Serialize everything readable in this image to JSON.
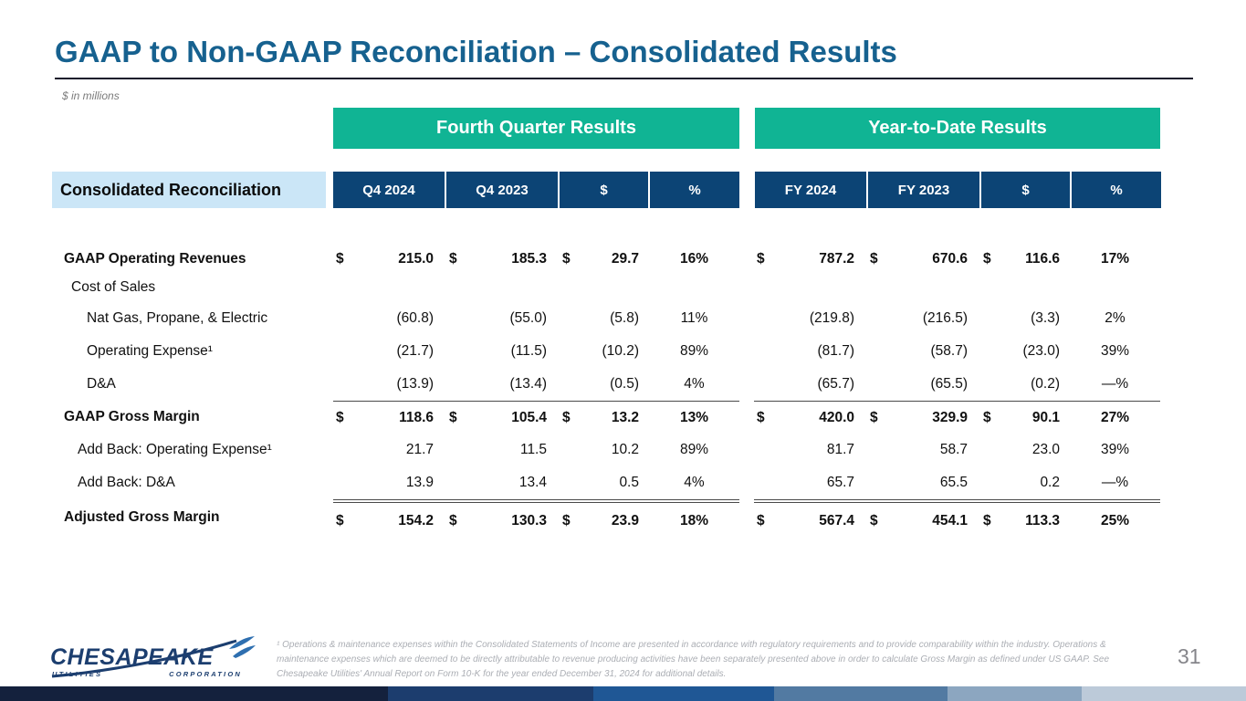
{
  "slide": {
    "title": "GAAP to Non-GAAP Reconciliation – Consolidated Results",
    "units_note": "$ in millions",
    "page_number": "31"
  },
  "table": {
    "group_headers": [
      "Fourth Quarter Results",
      "Year-to-Date Results"
    ],
    "row_header_label": "Consolidated Reconciliation",
    "columns_q": [
      "Q4 2024",
      "Q4 2023",
      "$",
      "%"
    ],
    "columns_y": [
      "FY 2024",
      "FY 2023",
      "$",
      "%"
    ],
    "rows": [
      {
        "label": "GAAP Operating Revenues",
        "indent": 13,
        "bold": true,
        "rule": "none",
        "q": [
          "$",
          "215.0",
          "$",
          "185.3",
          "$",
          "29.7",
          "16%"
        ],
        "y": [
          "$",
          "787.2",
          "$",
          "670.6",
          "$",
          "116.6",
          "17%"
        ]
      },
      {
        "label": "Cost of Sales",
        "indent": 21,
        "bold": false,
        "rule": "none",
        "q": [
          "",
          "",
          "",
          "",
          "",
          "",
          ""
        ],
        "y": [
          "",
          "",
          "",
          "",
          "",
          "",
          ""
        ]
      },
      {
        "label": "Nat Gas, Propane, & Electric",
        "indent": 38,
        "bold": false,
        "rule": "none",
        "q": [
          "",
          "(60.8)",
          "",
          "(55.0)",
          "",
          "(5.8)",
          "11%"
        ],
        "y": [
          "",
          "(219.8)",
          "",
          "(216.5)",
          "",
          "(3.3)",
          "2%"
        ]
      },
      {
        "label": "Operating Expense¹",
        "indent": 38,
        "bold": false,
        "rule": "none",
        "q": [
          "",
          "(21.7)",
          "",
          "(11.5)",
          "",
          "(10.2)",
          "89%"
        ],
        "y": [
          "",
          "(81.7)",
          "",
          "(58.7)",
          "",
          "(23.0)",
          "39%"
        ]
      },
      {
        "label": "D&A",
        "indent": 38,
        "bold": false,
        "rule": "none",
        "q": [
          "",
          "(13.9)",
          "",
          "(13.4)",
          "",
          "(0.5)",
          "4%"
        ],
        "y": [
          "",
          "(65.7)",
          "",
          "(65.5)",
          "",
          "(0.2)",
          "—%"
        ]
      },
      {
        "label": "GAAP Gross Margin",
        "indent": 13,
        "bold": true,
        "rule": "single",
        "q": [
          "$",
          "118.6",
          "$",
          "105.4",
          "$",
          "13.2",
          "13%"
        ],
        "y": [
          "$",
          "420.0",
          "$",
          "329.9",
          "$",
          "90.1",
          "27%"
        ]
      },
      {
        "label": "Add Back: Operating Expense¹",
        "indent": 28,
        "bold": false,
        "rule": "none",
        "q": [
          "",
          "21.7",
          "",
          "11.5",
          "",
          "10.2",
          "89%"
        ],
        "y": [
          "",
          "81.7",
          "",
          "58.7",
          "",
          "23.0",
          "39%"
        ]
      },
      {
        "label": "Add Back: D&A",
        "indent": 28,
        "bold": false,
        "rule": "none",
        "q": [
          "",
          "13.9",
          "",
          "13.4",
          "",
          "0.5",
          "4%"
        ],
        "y": [
          "",
          "65.7",
          "",
          "65.5",
          "",
          "0.2",
          "—%"
        ]
      },
      {
        "label": "Adjusted Gross Margin",
        "indent": 13,
        "bold": true,
        "rule": "double",
        "q": [
          "$",
          "154.2",
          "$",
          "130.3",
          "$",
          "23.9",
          "18%"
        ],
        "y": [
          "$",
          "567.4",
          "$",
          "454.1",
          "$",
          "113.3",
          "25%"
        ]
      }
    ]
  },
  "footnote": {
    "text": "¹ Operations & maintenance expenses within the Consolidated Statements of Income are presented in accordance with regulatory requirements and to provide comparability within the industry. Operations & maintenance expenses which are deemed to be directly attributable to revenue producing activities have been separately presented above in order to calculate Gross Margin as defined under US GAAP. See Chesapeake Utilities' Annual Report on Form 10-K for the year ended December 31, 2024 for additional details."
  },
  "logo": {
    "company": "CHESAPEAKE",
    "sub_left": "UTILITIES",
    "sub_right": "CORPORATION"
  },
  "colors": {
    "accent_teal": "#10B494",
    "header_navy": "#0C4475",
    "title_blue": "#16618F",
    "row_header_bg": "#CBE6F7",
    "logo_navy": "#1C3E6F",
    "bird_blue": "#2E6FB0",
    "footer_bar_segments": [
      "#14213D",
      "#1C3D6E",
      "#1F5795",
      "#527AA2",
      "#8CA6C0",
      "#BCCAD9"
    ]
  }
}
